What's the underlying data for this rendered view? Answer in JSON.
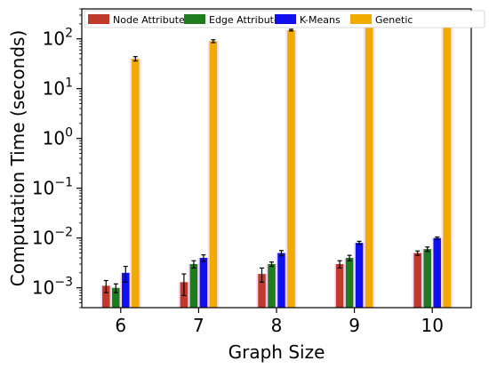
{
  "chart_data": {
    "type": "bar",
    "xlabel": "Graph Size",
    "ylabel": "Computation Time (seconds)",
    "yscale": "log",
    "ylim": [
      0.0004,
      400
    ],
    "grid": false,
    "legend_position": "top",
    "categories": [
      "6",
      "7",
      "8",
      "9",
      "10"
    ],
    "y_ticks": [
      {
        "value": 0.001,
        "base": "10",
        "exp": "−3"
      },
      {
        "value": 0.01,
        "base": "10",
        "exp": "−2"
      },
      {
        "value": 0.1,
        "base": "10",
        "exp": "−1"
      },
      {
        "value": 1,
        "base": "10",
        "exp": "0"
      },
      {
        "value": 10,
        "base": "10",
        "exp": "1"
      },
      {
        "value": 100,
        "base": "10",
        "exp": "2"
      }
    ],
    "series": [
      {
        "name": "Node Attribute",
        "color": "#c0392b",
        "values": [
          0.0011,
          0.0013,
          0.0019,
          0.003,
          0.005
        ],
        "errors": [
          0.0003,
          0.0006,
          0.0006,
          0.0005,
          0.0005
        ]
      },
      {
        "name": "Edge Attribute",
        "color": "#1e7b1e",
        "values": [
          0.001,
          0.003,
          0.003,
          0.004,
          0.006
        ],
        "errors": [
          0.0002,
          0.0005,
          0.0003,
          0.0005,
          0.0006
        ]
      },
      {
        "name": "K-Means",
        "color": "#1010ee",
        "values": [
          0.002,
          0.004,
          0.005,
          0.008,
          0.01
        ],
        "errors": [
          0.0007,
          0.0006,
          0.0006,
          0.0006,
          0.0005
        ]
      },
      {
        "name": "Genetic",
        "color": "#f0aa00",
        "values": [
          40,
          90,
          150,
          210,
          320
        ],
        "errors": [
          4,
          6,
          6,
          8,
          10
        ]
      }
    ]
  }
}
